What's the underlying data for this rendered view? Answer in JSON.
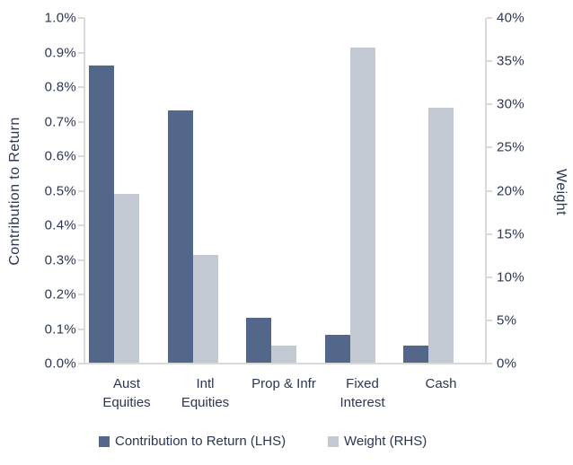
{
  "palette": {
    "contribution_bar": "#52678a",
    "weight_bar": "#c2c9d3",
    "text": "#2b3752",
    "axis_line": "#d9d9d9"
  },
  "chart_data": {
    "type": "bar",
    "title": "",
    "categories": [
      "Aust Equities",
      "Intl Equities",
      "Prop & Infr",
      "Fixed Interest",
      "Cash"
    ],
    "categories_display": [
      [
        "Aust",
        "Equities"
      ],
      [
        "Intl",
        "Equities"
      ],
      [
        "Prop & Infr"
      ],
      [
        "Fixed",
        "Interest"
      ],
      [
        "Cash"
      ]
    ],
    "series": [
      {
        "name": "Contribution to Return (LHS)",
        "axis": "left",
        "color": "#52678a",
        "unit": "%",
        "values": [
          0.86,
          0.73,
          0.13,
          0.08,
          0.05
        ]
      },
      {
        "name": "Weight (RHS)",
        "axis": "right",
        "color": "#c2c9d3",
        "unit": "%",
        "values": [
          19.5,
          12.5,
          2.0,
          36.5,
          29.5
        ]
      }
    ],
    "left_axis": {
      "label": "Contribution to Return",
      "min": 0.0,
      "max": 1.0,
      "tick_step": 0.1,
      "ticks": [
        "1.0%",
        "0.9%",
        "0.8%",
        "0.7%",
        "0.6%",
        "0.5%",
        "0.4%",
        "0.3%",
        "0.2%",
        "0.1%",
        "0.0%"
      ]
    },
    "right_axis": {
      "label": "Weight",
      "min": 0,
      "max": 40,
      "tick_step": 5,
      "ticks": [
        "40%",
        "35%",
        "30%",
        "25%",
        "20%",
        "15%",
        "10%",
        "5%",
        "0%"
      ]
    },
    "grid": false,
    "legend_position": "bottom"
  }
}
